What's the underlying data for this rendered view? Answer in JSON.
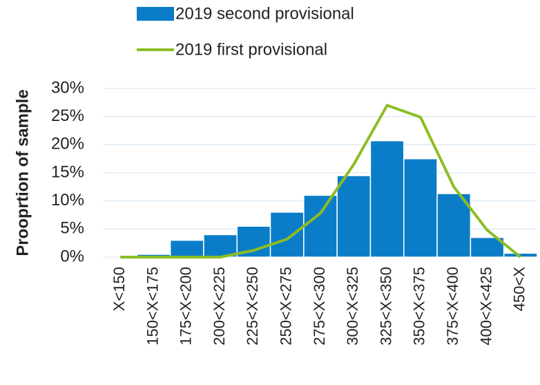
{
  "chart_data": {
    "type": "bar_line",
    "ylabel": "Prooprtion of sample",
    "categories": [
      "X<150",
      "150<X<175",
      "175<X<200",
      "200<X<225",
      "225<X<250",
      "250<X<275",
      "275<X<300",
      "300<X<325",
      "325<X<350",
      "350<X<375",
      "375<X<400",
      "400<X<425",
      "450<X"
    ],
    "series": [
      {
        "name": "2019 second provisional",
        "type": "bar",
        "color": "#0b7dc8",
        "values": [
          0,
          0.5,
          3,
          4,
          5.5,
          8,
          11,
          14.5,
          20.7,
          17.5,
          11.3,
          3.5,
          0.7
        ]
      },
      {
        "name": "2019 first provisional",
        "type": "line",
        "color": "#8cbd23",
        "values": [
          0,
          0,
          0,
          0,
          1.2,
          3.2,
          7.8,
          16.5,
          27,
          24.9,
          12.5,
          4.8,
          0
        ]
      }
    ],
    "ylim": [
      0,
      30
    ],
    "yticks": [
      {
        "value": 0,
        "label": "0%"
      },
      {
        "value": 5,
        "label": "5%"
      },
      {
        "value": 10,
        "label": "10%"
      },
      {
        "value": 15,
        "label": "15%"
      },
      {
        "value": 20,
        "label": "20%"
      },
      {
        "value": 25,
        "label": "25%"
      },
      {
        "value": 30,
        "label": "30%"
      }
    ],
    "grid": true,
    "legend": "top"
  }
}
